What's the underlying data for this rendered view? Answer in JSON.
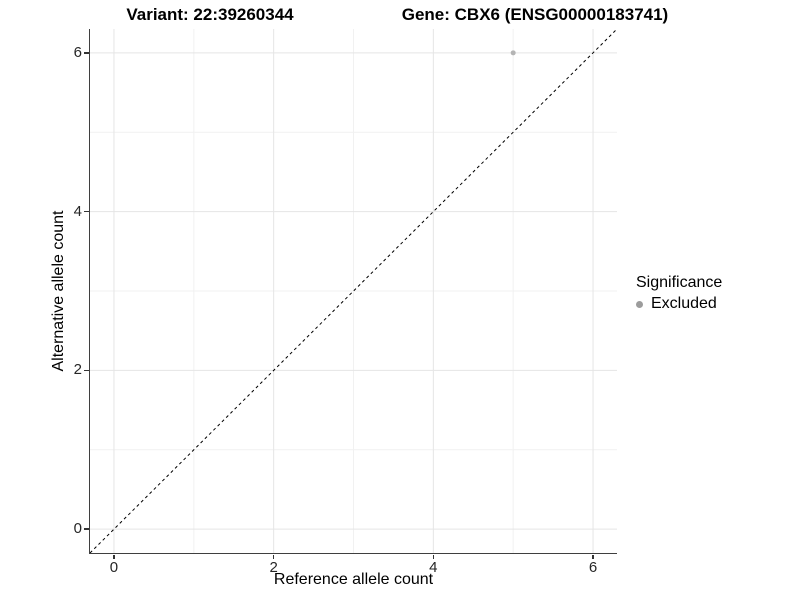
{
  "chart_data": {
    "type": "scatter",
    "title_left": "Variant: 22:39260344",
    "title_right": "Gene: CBX6 (ENSG00000183741)",
    "xlabel": "Reference allele count",
    "ylabel": "Alternative allele count",
    "xlim": [
      -0.3,
      6.3
    ],
    "ylim": [
      -0.3,
      6.3
    ],
    "x_ticks": [
      0,
      2,
      4,
      6
    ],
    "y_ticks": [
      0,
      2,
      4,
      6
    ],
    "x_minor_ticks": [
      1,
      3,
      5
    ],
    "y_minor_ticks": [
      1,
      3,
      5
    ],
    "grid": true,
    "points": [
      {
        "x": 5,
        "y": 6,
        "series": "Excluded"
      }
    ],
    "reference_line": {
      "style": "dashed",
      "from": [
        -0.3,
        -0.3
      ],
      "to": [
        6.3,
        6.3
      ]
    },
    "legend": {
      "title": "Significance",
      "position": "right",
      "items": [
        {
          "label": "Excluded",
          "color": "#9c9c9c"
        }
      ]
    },
    "colors": {
      "point": "#b4b4b4",
      "grid_major": "#e5e5e5",
      "grid_minor": "#f1f1f1",
      "axis_line": "#3f3f3f",
      "tick_mark": "#333333",
      "dashed_line": "#000000",
      "background": "#ffffff"
    }
  }
}
